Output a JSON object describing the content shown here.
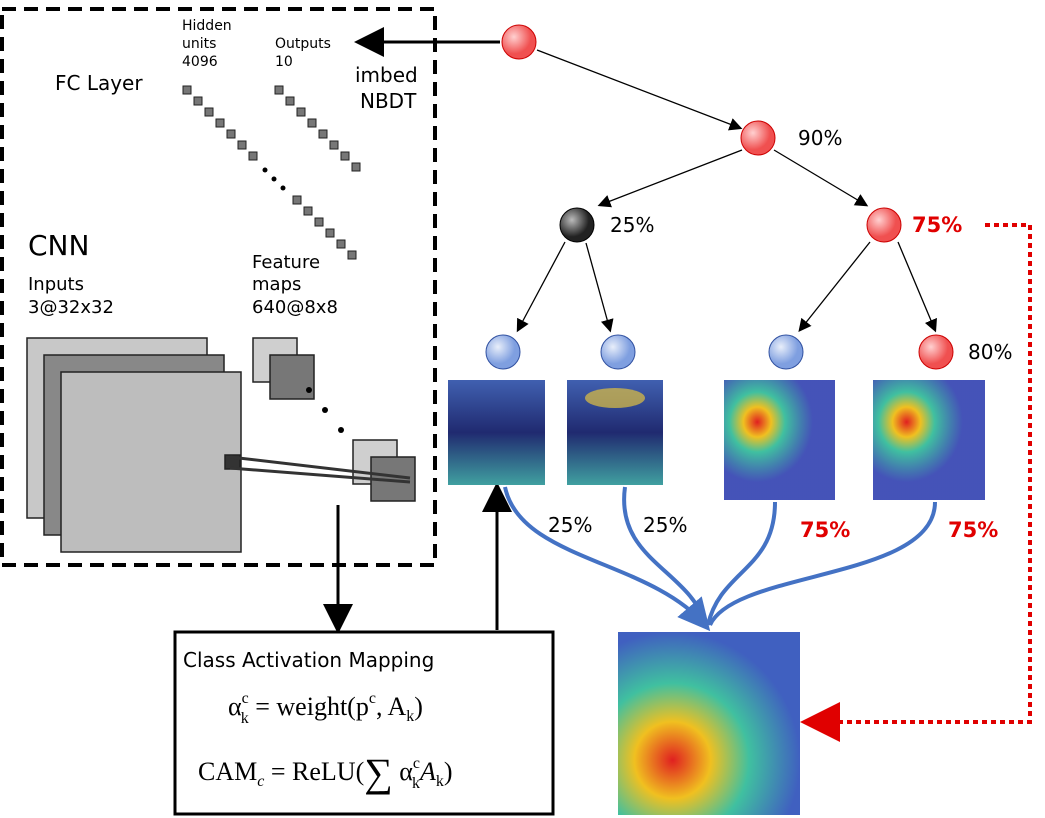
{
  "fc_panel": {
    "title": "FC Layer",
    "hidden_units": [
      "Hidden",
      "units",
      "4096"
    ],
    "outputs": [
      "Outputs",
      "10"
    ],
    "cnn_title": "CNN",
    "inputs": [
      "Inputs",
      "3@32x32"
    ],
    "feature_maps": [
      "Feature",
      "maps",
      "640@8x8"
    ]
  },
  "imbed_label": [
    "imbed",
    "NBDT"
  ],
  "tree": {
    "node_labels": [
      "90%",
      "25%",
      "75%",
      "80%"
    ],
    "edge_labels": [
      "25%",
      "25%",
      "75%",
      "75%"
    ]
  },
  "cam_box": {
    "title": "Class Activation Mapping",
    "formula_1": [
      "α",
      "c",
      "k",
      " = weight(p",
      "c",
      ", A",
      "k",
      ")"
    ],
    "formula_2": [
      "CAM",
      "c",
      " = ReLU(",
      "∑",
      " α",
      "c",
      "k",
      "A",
      "k",
      ")"
    ]
  }
}
